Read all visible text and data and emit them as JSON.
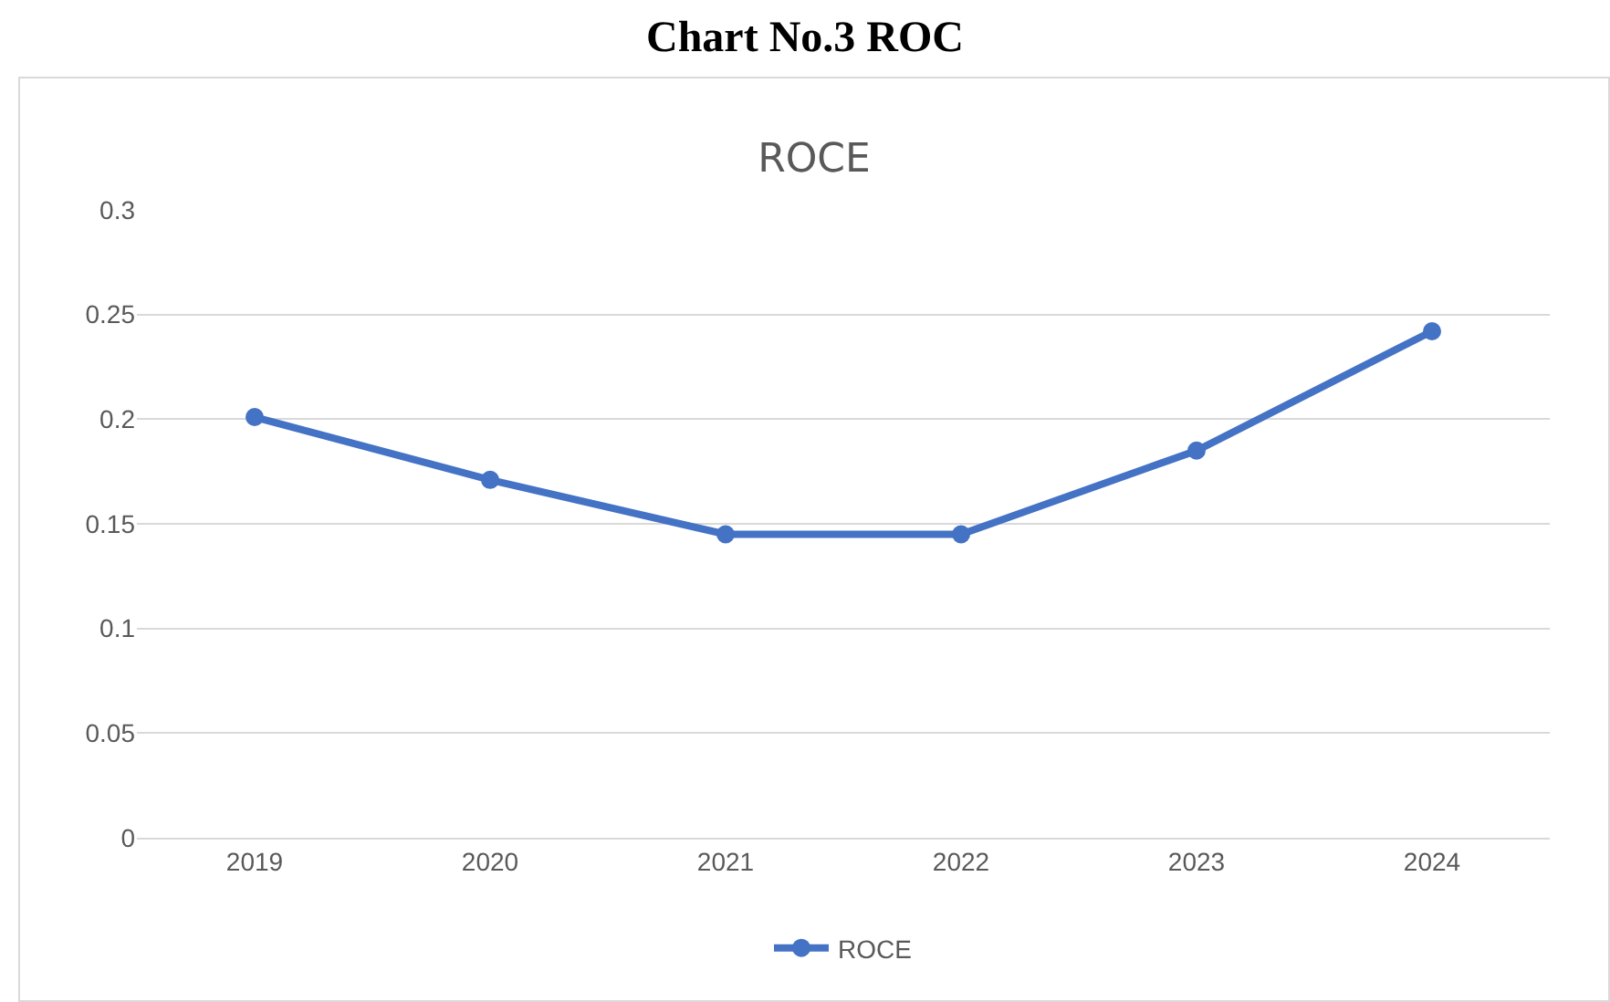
{
  "chart_data": {
    "type": "line",
    "title": "Chart No.3 ROC",
    "subtitle": "ROCE",
    "categories": [
      "2019",
      "2020",
      "2021",
      "2022",
      "2023",
      "2024"
    ],
    "series": [
      {
        "name": "ROCE",
        "color": "#4472c4",
        "values": [
          0.201,
          0.171,
          0.145,
          0.145,
          0.185,
          0.242
        ]
      }
    ],
    "ylim": [
      0,
      0.3
    ],
    "yticks": [
      0,
      0.05,
      0.1,
      0.15,
      0.2,
      0.25,
      0.3
    ],
    "grid": "y",
    "legend": "bottom",
    "marker": "circle",
    "line_style": "solid"
  }
}
